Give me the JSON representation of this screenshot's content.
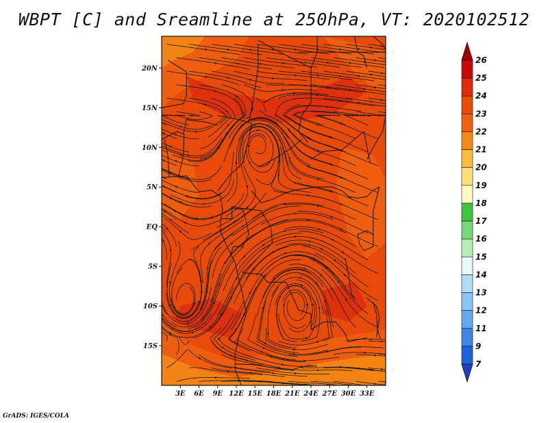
{
  "title": "WBPT [C] and Sreamline at 250hPa, VT: 2020102512",
  "footer": "GrADS: IGES/COLA",
  "map": {
    "lon_range": [
      0,
      36
    ],
    "lat_range": [
      -20,
      24
    ],
    "x_ticks": [
      "3E",
      "6E",
      "9E",
      "12E",
      "15E",
      "18E",
      "21E",
      "24E",
      "27E",
      "30E",
      "33E"
    ],
    "x_tick_values": [
      3,
      6,
      9,
      12,
      15,
      18,
      21,
      24,
      27,
      30,
      33
    ],
    "y_ticks": [
      "20N",
      "15N",
      "10N",
      "5N",
      "EQ",
      "5S",
      "10S",
      "15S"
    ],
    "y_tick_values": [
      20,
      15,
      10,
      5,
      0,
      -5,
      -10,
      -15
    ],
    "dominant_field_color": "#e84a0a",
    "field_colors": {
      "23": "#e84a0a",
      "22": "#f06010",
      "24": "#dc2c0c",
      "21": "#f58a18"
    }
  },
  "colorbar": {
    "labels": [
      "26",
      "25",
      "24",
      "23",
      "22",
      "21",
      "20",
      "19",
      "18",
      "17",
      "16",
      "15",
      "14",
      "13",
      "12",
      "11",
      "9",
      "7"
    ],
    "colors": [
      "#a50000",
      "#c80808",
      "#dc2c0c",
      "#e84a0a",
      "#f06010",
      "#f58a18",
      "#fbbe3c",
      "#fde07c",
      "#fff8c2",
      "#3ec43e",
      "#78d878",
      "#b8ecb4",
      "#e6f8fa",
      "#b4dcf8",
      "#8cc4f4",
      "#64a8ee",
      "#3e86e4",
      "#2060d8",
      "#1e3ec8"
    ]
  }
}
